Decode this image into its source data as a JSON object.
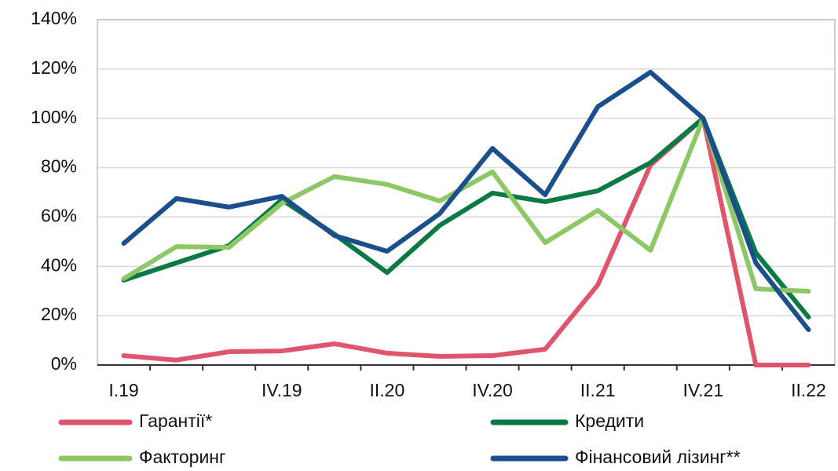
{
  "chart_data": {
    "type": "line",
    "categories": [
      "I.19",
      null,
      null,
      "IV.19",
      null,
      "II.20",
      null,
      "IV.20",
      null,
      "II.21",
      null,
      "IV.21",
      null,
      "II.22"
    ],
    "series": [
      {
        "name": "Гарантії*",
        "color": "#e0546c",
        "values": [
          3.8,
          2,
          5.4,
          5.7,
          8.6,
          4.8,
          3.5,
          3.8,
          6.4,
          32.5,
          81,
          100,
          0,
          0
        ]
      },
      {
        "name": "Кредити",
        "color": "#0a7a45",
        "values": [
          34.4,
          41.4,
          48.4,
          67,
          53,
          37.5,
          56.6,
          69.7,
          66.2,
          70.6,
          82,
          100,
          45.5,
          19.4
        ]
      },
      {
        "name": "Факторинг",
        "color": "#8cc864",
        "values": [
          35,
          48,
          47.7,
          65.5,
          76.4,
          73.2,
          66.5,
          78.3,
          49.6,
          62.7,
          46.5,
          100,
          30.9,
          29.9
        ]
      },
      {
        "name": "Фінансовий лізинг**",
        "color": "#1a4f8c",
        "values": [
          49.3,
          67.5,
          64,
          68.4,
          52.5,
          46.1,
          61.4,
          87.8,
          69,
          104.7,
          118.7,
          100,
          41.4,
          14.3
        ]
      }
    ],
    "ylim": [
      0,
      140
    ],
    "yticks": [
      {
        "value": 0,
        "label": "0%"
      },
      {
        "value": 20,
        "label": "20%"
      },
      {
        "value": 40,
        "label": "40%"
      },
      {
        "value": 60,
        "label": "60%"
      },
      {
        "value": 80,
        "label": "80%"
      },
      {
        "value": 100,
        "label": "100%"
      },
      {
        "value": 120,
        "label": "120%"
      },
      {
        "value": 140,
        "label": "140%"
      }
    ],
    "grid": true
  }
}
